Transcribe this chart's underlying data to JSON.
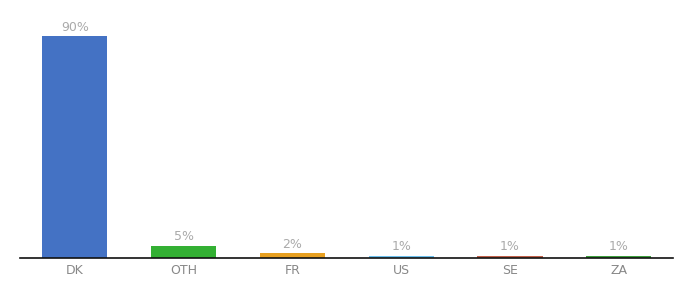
{
  "categories": [
    "DK",
    "OTH",
    "FR",
    "US",
    "SE",
    "ZA"
  ],
  "values": [
    90,
    5,
    2,
    1,
    1,
    1
  ],
  "bar_colors": [
    "#4472c4",
    "#33b033",
    "#e8a020",
    "#6bbfed",
    "#c0604a",
    "#3d9e3d"
  ],
  "labels": [
    "90%",
    "5%",
    "2%",
    "1%",
    "1%",
    "1%"
  ],
  "ylim": [
    0,
    95
  ],
  "background_color": "#ffffff",
  "bar_width": 0.6,
  "label_fontsize": 9,
  "tick_fontsize": 9,
  "label_color": "#aaaaaa"
}
